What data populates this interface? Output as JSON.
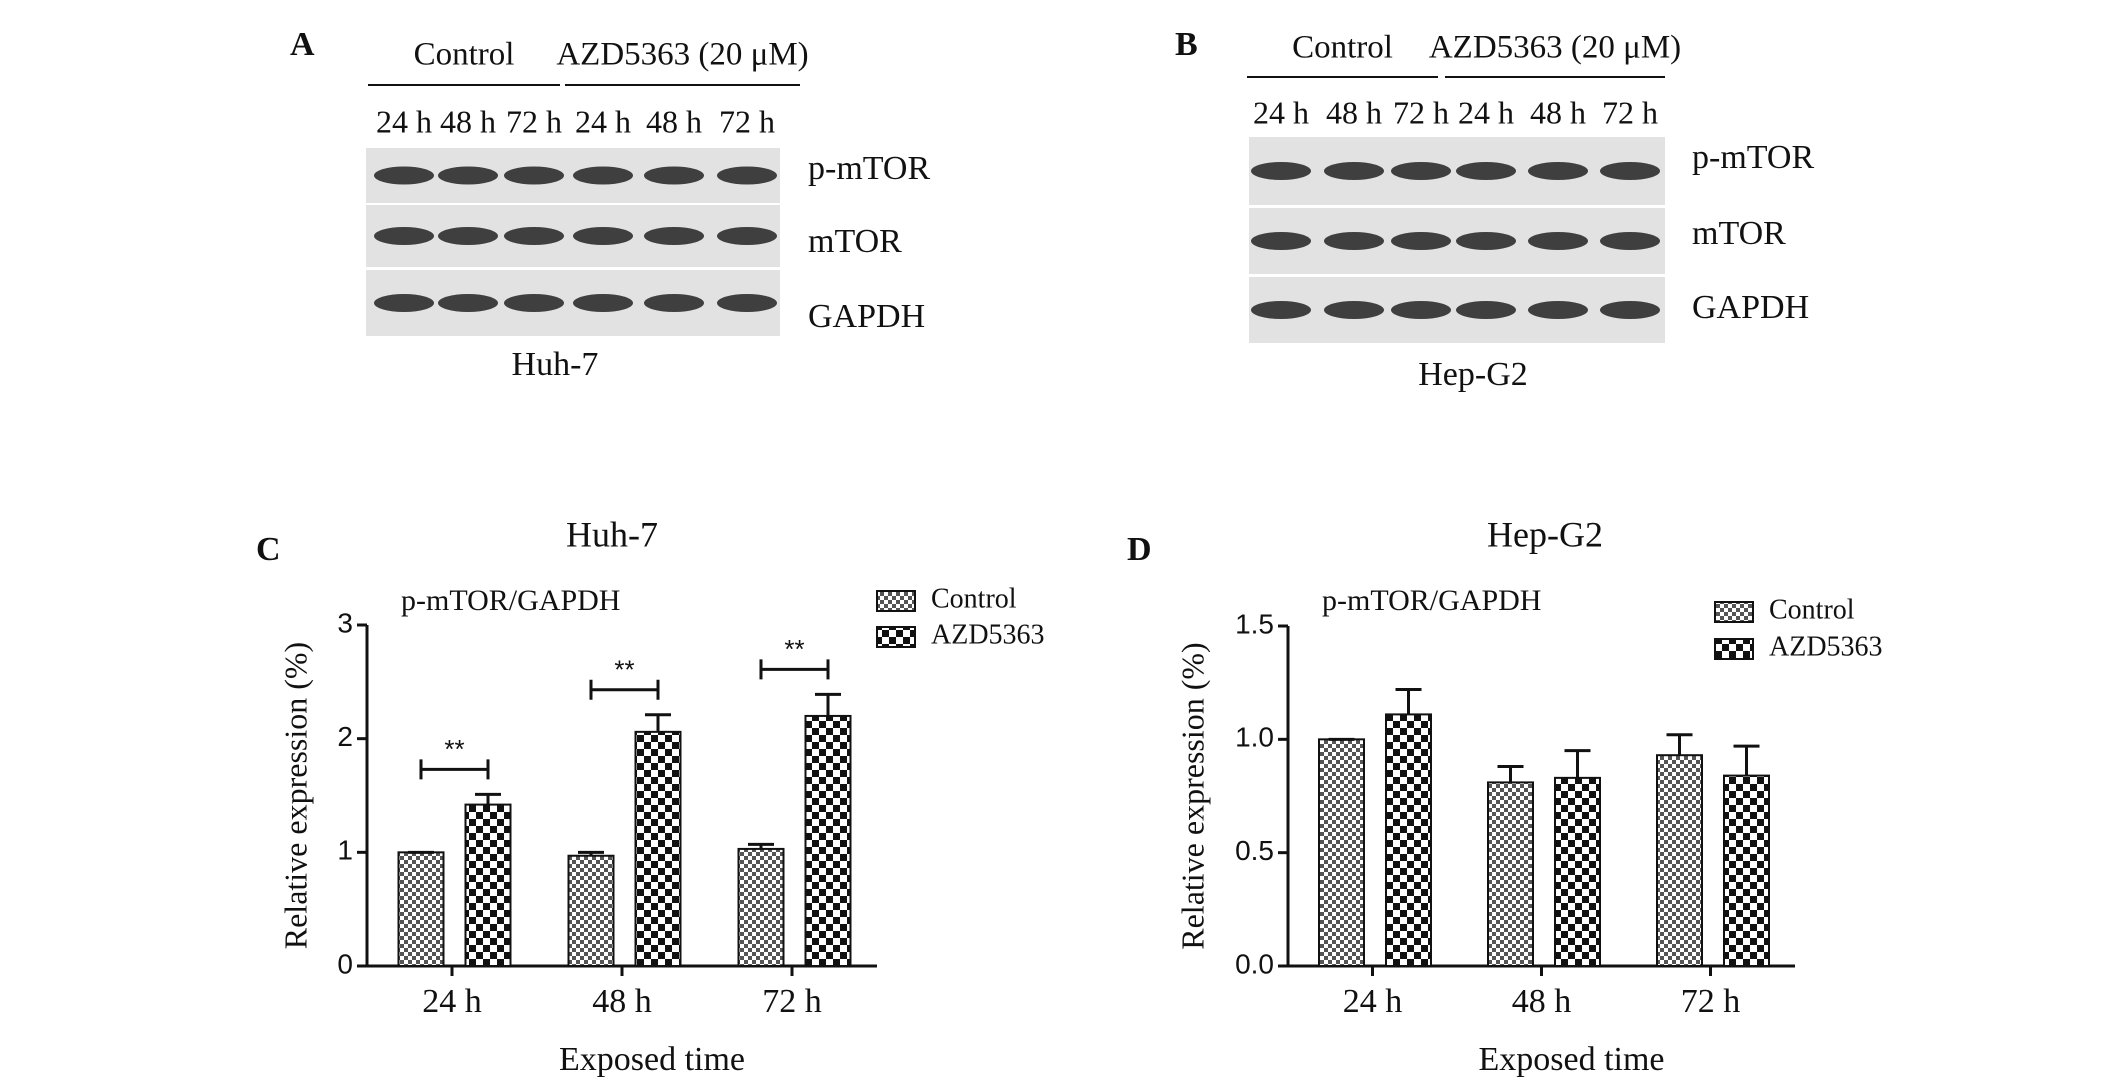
{
  "blots": [
    {
      "panel": "A",
      "groups": [
        "Control",
        "AZD5363 (20 μM)"
      ],
      "lanes": [
        "24 h",
        "48 h",
        "72 h",
        "24 h",
        "48 h",
        "72 h"
      ],
      "proteins": [
        "p-mTOR",
        "mTOR",
        "GAPDH"
      ],
      "cell_line": "Huh-7"
    },
    {
      "panel": "B",
      "groups": [
        "Control",
        "AZD5363 (20 μM)"
      ],
      "lanes": [
        "24 h",
        "48 h",
        "72 h",
        "24 h",
        "48 h",
        "72 h"
      ],
      "proteins": [
        "p-mTOR",
        "mTOR",
        "GAPDH"
      ],
      "cell_line": "Hep-G2"
    }
  ],
  "chart_data": [
    {
      "type": "bar",
      "panel": "C",
      "title": "Huh-7",
      "annotation": "p-mTOR/GAPDH",
      "y_label": "Relative expression (%)",
      "x_label": "Exposed time",
      "categories": [
        "24 h",
        "48 h",
        "72 h"
      ],
      "series": [
        {
          "name": "Control",
          "color": "#555555",
          "values": [
            1.0,
            0.97,
            1.03
          ],
          "errors": [
            0,
            0.03,
            0.04
          ]
        },
        {
          "name": "AZD5363",
          "color": "#111111",
          "values": [
            1.42,
            2.06,
            2.2
          ],
          "errors": [
            0.09,
            0.15,
            0.19
          ]
        }
      ],
      "significance": [
        "**",
        "**",
        "**"
      ],
      "ylim": [
        0,
        3
      ],
      "yticks": [
        0,
        1,
        2,
        3
      ]
    },
    {
      "type": "bar",
      "panel": "D",
      "title": "Hep-G2",
      "annotation": "p-mTOR/GAPDH",
      "y_label": "Relative expression (%)",
      "x_label": "Exposed time",
      "categories": [
        "24 h",
        "48 h",
        "72 h"
      ],
      "series": [
        {
          "name": "Control",
          "color": "#555555",
          "values": [
            1.0,
            0.81,
            0.93
          ],
          "errors": [
            0,
            0.07,
            0.09
          ]
        },
        {
          "name": "AZD5363",
          "color": "#111111",
          "values": [
            1.11,
            0.83,
            0.84
          ],
          "errors": [
            0.11,
            0.12,
            0.13
          ]
        }
      ],
      "ylim": [
        0,
        1.5
      ],
      "yticks": [
        {
          "value": 0,
          "label": "0.0"
        },
        0.5,
        {
          "value": 1,
          "label": "1.0"
        },
        1.5
      ]
    }
  ]
}
